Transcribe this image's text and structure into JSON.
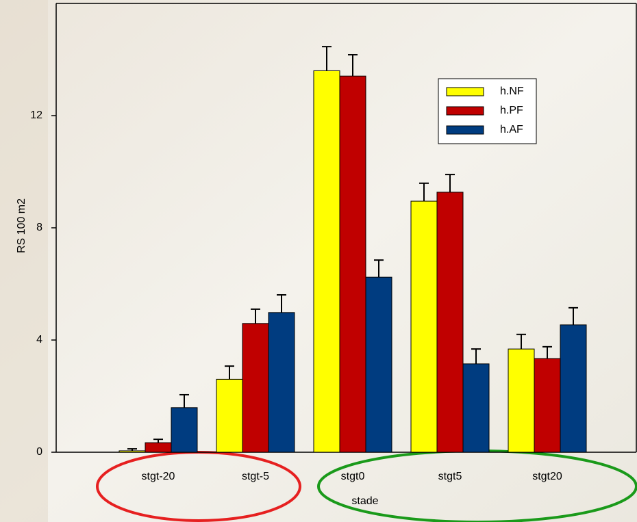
{
  "chart_data": {
    "type": "bar",
    "x_label": "stade",
    "y_label": "RS 100 m2",
    "categories": [
      "stgt-20",
      "stgt-5",
      "stgt0",
      "stgt5",
      "stgt20"
    ],
    "series": [
      {
        "name": "h.NF",
        "color": "#ffff00",
        "values": [
          0.05,
          2.6,
          13.6,
          8.95,
          3.68
        ],
        "errors": [
          0.07,
          0.47,
          0.86,
          0.64,
          0.52
        ]
      },
      {
        "name": "h.PF",
        "color": "#c00000",
        "values": [
          0.34,
          4.59,
          13.41,
          9.27,
          3.34
        ],
        "errors": [
          0.12,
          0.51,
          0.76,
          0.63,
          0.42
        ]
      },
      {
        "name": "h.AF",
        "color": "#003c80",
        "values": [
          1.59,
          4.98,
          6.24,
          3.15,
          4.54
        ],
        "errors": [
          0.46,
          0.63,
          0.61,
          0.53,
          0.61
        ]
      }
    ],
    "ylim": [
      0,
      16
    ],
    "yticks": [
      0,
      4,
      8,
      12
    ],
    "legend": "upper right"
  }
}
